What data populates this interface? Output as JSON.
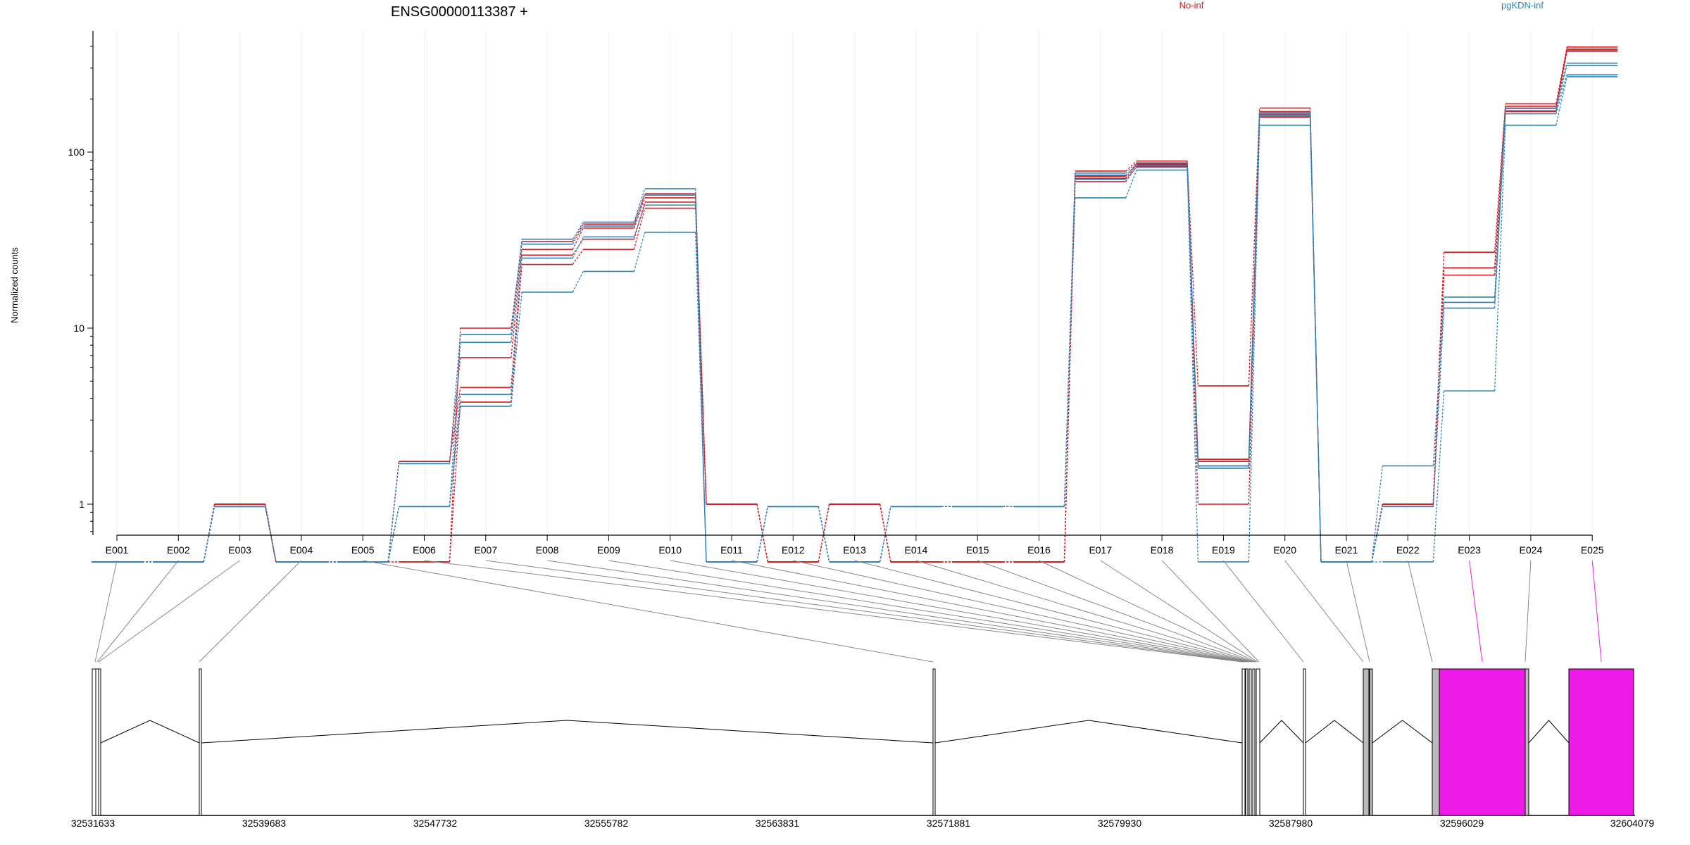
{
  "chart_data": {
    "type": "line",
    "title": "ENSG00000113387 +",
    "ylabel": "Normalized counts",
    "xlabel": "",
    "y_scale": "log",
    "yticks": [
      1,
      10,
      100
    ],
    "categories": [
      "E001",
      "E002",
      "E003",
      "E004",
      "E005",
      "E006",
      "E007",
      "E008",
      "E009",
      "E010",
      "E011",
      "E012",
      "E013",
      "E014",
      "E015",
      "E016",
      "E017",
      "E018",
      "E019",
      "E020",
      "E021",
      "E022",
      "E023",
      "E024",
      "E025"
    ],
    "legend": [
      {
        "name": "No-inf",
        "color": "#d7191c"
      },
      {
        "name": "pgKDN-inf",
        "color": "#2b83ba"
      }
    ],
    "floor_value": 0.47,
    "series": [
      {
        "group": "No-inf",
        "color": "#d7191c",
        "values": [
          0.47,
          0.47,
          1.0,
          0.47,
          0.47,
          0.47,
          10.0,
          31.0,
          39.0,
          58.0,
          1.0,
          0.47,
          1.0,
          0.47,
          0.47,
          0.47,
          78.0,
          89.0,
          4.7,
          178.0,
          0.47,
          1.0,
          27.0,
          188.0,
          395.0
        ]
      },
      {
        "group": "No-inf",
        "color": "#d7191c",
        "values": [
          0.47,
          0.47,
          1.0,
          0.47,
          0.47,
          1.75,
          6.8,
          28.0,
          37.0,
          55.0,
          1.0,
          0.47,
          1.0,
          0.47,
          0.47,
          0.47,
          73.0,
          86.0,
          1.8,
          170.0,
          0.47,
          1.0,
          22.0,
          182.0,
          385.0
        ]
      },
      {
        "group": "No-inf",
        "color": "#d7191c",
        "values": [
          0.47,
          0.47,
          1.0,
          0.47,
          0.47,
          1.75,
          4.6,
          26.0,
          32.0,
          52.0,
          1.0,
          0.47,
          1.0,
          0.47,
          0.47,
          0.47,
          71.0,
          85.0,
          1.75,
          163.0,
          0.47,
          1.0,
          22.0,
          177.0,
          380.0
        ]
      },
      {
        "group": "No-inf",
        "color": "#d7191c",
        "values": [
          0.47,
          0.47,
          1.0,
          0.47,
          0.47,
          0.47,
          3.8,
          23.0,
          28.0,
          48.0,
          1.0,
          0.47,
          1.0,
          0.47,
          0.47,
          0.47,
          68.0,
          83.0,
          1.0,
          158.0,
          0.47,
          1.0,
          20.0,
          170.0,
          372.0
        ]
      },
      {
        "group": "pgKDN-inf",
        "color": "#2b83ba",
        "values": [
          0.47,
          0.47,
          0.97,
          0.47,
          0.47,
          1.7,
          9.2,
          32.0,
          40.0,
          62.0,
          0.47,
          0.97,
          0.47,
          0.97,
          0.97,
          0.97,
          76.0,
          87.0,
          1.65,
          168.0,
          0.47,
          1.65,
          15.0,
          178.0,
          320.0
        ]
      },
      {
        "group": "pgKDN-inf",
        "color": "#2b83ba",
        "values": [
          0.47,
          0.47,
          0.97,
          0.47,
          0.47,
          0.97,
          8.3,
          30.0,
          38.0,
          57.0,
          0.47,
          0.97,
          0.47,
          0.97,
          0.97,
          0.97,
          74.0,
          84.0,
          1.65,
          165.0,
          0.47,
          0.97,
          14.0,
          172.0,
          310.0
        ]
      },
      {
        "group": "pgKDN-inf",
        "color": "#2b83ba",
        "values": [
          0.47,
          0.47,
          0.97,
          0.47,
          0.47,
          0.97,
          4.2,
          25.0,
          33.0,
          50.0,
          0.47,
          0.97,
          0.47,
          0.97,
          0.97,
          0.97,
          70.0,
          82.0,
          1.6,
          160.0,
          0.47,
          0.97,
          13.0,
          165.0,
          275.0
        ]
      },
      {
        "group": "pgKDN-inf",
        "color": "#2b83ba",
        "values": [
          0.47,
          0.47,
          0.97,
          0.47,
          0.47,
          0.97,
          3.6,
          16.0,
          21.0,
          35.0,
          0.47,
          0.97,
          0.47,
          0.97,
          0.97,
          0.97,
          55.0,
          79.0,
          0.47,
          142.0,
          0.47,
          0.47,
          4.4,
          142.0,
          268.0
        ]
      }
    ],
    "gene_model": {
      "coordinate_labels": [
        "32531633",
        "32539683",
        "32547732",
        "32555782",
        "32563831",
        "32571881",
        "32579930",
        "32587980",
        "32596029",
        "32604079"
      ],
      "exon_color": "#ee1be8",
      "highlighted_exons": [
        "E023",
        "E025"
      ]
    }
  }
}
